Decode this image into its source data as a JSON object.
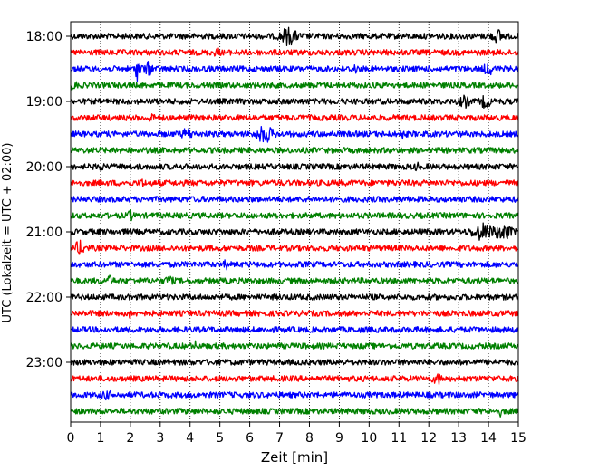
{
  "chart_data": {
    "type": "line",
    "title": "",
    "xlabel": "Zeit  [min]",
    "ylabel": "UTC (Lokalzeit = UTC + 02:00)",
    "xlim": [
      0,
      15
    ],
    "x_ticks": [
      0,
      1,
      2,
      3,
      4,
      5,
      6,
      7,
      8,
      9,
      10,
      11,
      12,
      13,
      14,
      15
    ],
    "y_ticks": [
      "18:00",
      "19:00",
      "20:00",
      "21:00",
      "22:00",
      "23:00"
    ],
    "grid": "vertical dotted",
    "colors": [
      "#000000",
      "#ff0000",
      "#0000ff",
      "#008000"
    ],
    "series": [
      {
        "start": "18:00",
        "color": "#000000",
        "events": [
          [
            7.3,
            0.6,
            0.5
          ],
          [
            14.3,
            0.45,
            0.3
          ]
        ]
      },
      {
        "start": "18:15",
        "color": "#ff0000",
        "events": [
          [
            4.9,
            0.25,
            0.15
          ]
        ]
      },
      {
        "start": "18:30",
        "color": "#0000ff",
        "events": [
          [
            2.25,
            1.0,
            0.15
          ],
          [
            2.6,
            0.4,
            0.3
          ],
          [
            9.5,
            0.4,
            0.15
          ],
          [
            14.0,
            0.35,
            0.3
          ]
        ]
      },
      {
        "start": "18:45",
        "color": "#008000",
        "events": [
          [
            0.1,
            0.35,
            0.15
          ]
        ]
      },
      {
        "start": "19:00",
        "color": "#000000",
        "events": [
          [
            13.2,
            0.35,
            0.3
          ],
          [
            13.9,
            0.4,
            0.3
          ]
        ]
      },
      {
        "start": "19:15",
        "color": "#ff0000",
        "events": [
          [
            2.7,
            0.25,
            0.15
          ]
        ]
      },
      {
        "start": "19:30",
        "color": "#0000ff",
        "events": [
          [
            3.9,
            0.35,
            0.3
          ],
          [
            6.5,
            0.6,
            0.5
          ],
          [
            11.1,
            0.3,
            0.1
          ]
        ]
      },
      {
        "start": "19:45",
        "color": "#008000",
        "events": [
          [
            1.5,
            0.25,
            0.1
          ]
        ]
      },
      {
        "start": "20:00",
        "color": "#000000",
        "events": [
          [
            1.0,
            0.35,
            0.1
          ],
          [
            11.6,
            0.3,
            0.1
          ]
        ]
      },
      {
        "start": "20:15",
        "color": "#ff0000",
        "events": [
          [
            2.4,
            0.35,
            0.1
          ]
        ]
      },
      {
        "start": "20:30",
        "color": "#0000ff",
        "events": []
      },
      {
        "start": "20:45",
        "color": "#008000",
        "events": [
          [
            2.0,
            0.3,
            0.15
          ]
        ]
      },
      {
        "start": "21:00",
        "color": "#000000",
        "events": [
          [
            13.8,
            0.55,
            0.7
          ],
          [
            14.5,
            0.5,
            0.5
          ]
        ]
      },
      {
        "start": "21:15",
        "color": "#ff0000",
        "events": [
          [
            0.3,
            0.45,
            0.3
          ]
        ]
      },
      {
        "start": "21:30",
        "color": "#0000ff",
        "events": [
          [
            5.2,
            0.3,
            0.1
          ]
        ]
      },
      {
        "start": "21:45",
        "color": "#008000",
        "events": [
          [
            1.3,
            0.25,
            0.2
          ],
          [
            3.3,
            0.3,
            0.2
          ]
        ]
      },
      {
        "start": "22:00",
        "color": "#000000",
        "events": []
      },
      {
        "start": "22:15",
        "color": "#ff0000",
        "events": [
          [
            2.0,
            0.3,
            0.1
          ]
        ]
      },
      {
        "start": "22:30",
        "color": "#0000ff",
        "events": []
      },
      {
        "start": "22:45",
        "color": "#008000",
        "events": [
          [
            4.2,
            0.25,
            0.1
          ]
        ]
      },
      {
        "start": "23:00",
        "color": "#000000",
        "events": []
      },
      {
        "start": "23:15",
        "color": "#ff0000",
        "events": [
          [
            12.3,
            0.3,
            0.3
          ]
        ]
      },
      {
        "start": "23:30",
        "color": "#0000ff",
        "events": [
          [
            1.2,
            0.2,
            0.3
          ]
        ]
      },
      {
        "start": "23:45",
        "color": "#008000",
        "events": [
          [
            14.4,
            0.25,
            0.1
          ]
        ]
      }
    ]
  }
}
